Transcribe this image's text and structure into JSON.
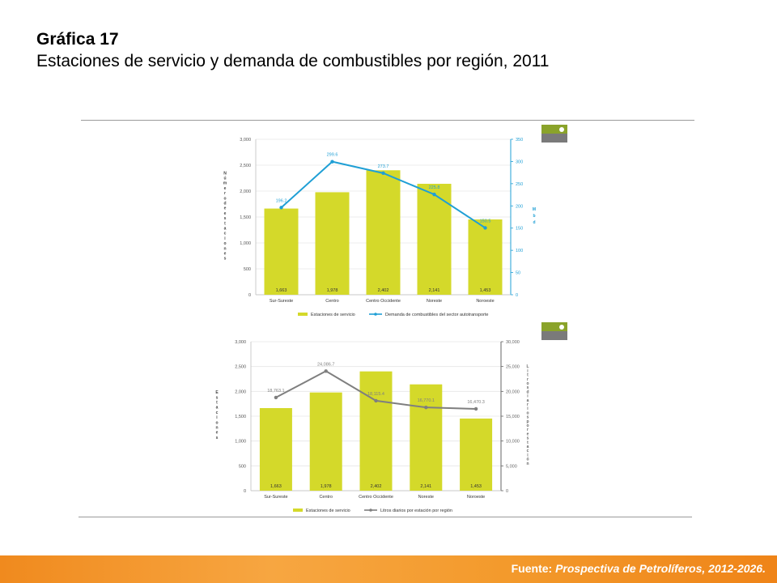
{
  "header": {
    "title": "Gráfica 17",
    "subtitle": "Estaciones de servicio y demanda de combustibles por región, 2011"
  },
  "footer": {
    "source_label": "Fuente:",
    "source_text": "Prospectiva de Petrolíferos, 2012-2026."
  },
  "colors": {
    "bar": "#d4d92a",
    "line_top": "#1f9fd5",
    "line_bottom": "#7f7f7f",
    "footer": "#f39a2c"
  },
  "chart_data": [
    {
      "type": "bar+line",
      "categories": [
        "Sur-Sureste",
        "Centro",
        "Centro Occidente",
        "Noreste",
        "Noroeste"
      ],
      "series": [
        {
          "name": "Estaciones de servicio",
          "type": "bar",
          "axis": "left",
          "values": [
            1663,
            1978,
            2402,
            2141,
            1453
          ],
          "labels": [
            "1,663",
            "1,978",
            "2,402",
            "2,141",
            "1,453"
          ]
        },
        {
          "name": "Demanda de combustibles del sector autotransporte",
          "type": "line",
          "axis": "right",
          "values": [
            196.2,
            299.6,
            273.7,
            225.8,
            150.5
          ],
          "labels": [
            "196.2",
            "299.6",
            "273.7",
            "225.8",
            "150.5"
          ]
        }
      ],
      "ylabel": "Número de estaciones",
      "y2label": "Mbd",
      "ylim": [
        0,
        3000
      ],
      "y2lim": [
        0,
        350
      ],
      "yticks": [
        "0",
        "500",
        "1,000",
        "1,500",
        "2,000",
        "2,500",
        "3,000"
      ],
      "y2ticks": [
        "0",
        "50",
        "100",
        "150",
        "200",
        "250",
        "300",
        "350"
      ],
      "legend_position": "bottom"
    },
    {
      "type": "bar+line",
      "categories": [
        "Sur-Sureste",
        "Centro",
        "Centro Occidente",
        "Noreste",
        "Noroeste"
      ],
      "series": [
        {
          "name": "Estaciones de servicio",
          "type": "bar",
          "axis": "left",
          "values": [
            1663,
            1978,
            2402,
            2141,
            1453
          ],
          "labels": [
            "1,663",
            "1,978",
            "2,402",
            "2,141",
            "1,453"
          ]
        },
        {
          "name": "Litros diarios por estación por región",
          "type": "line",
          "axis": "right",
          "values": [
            18763.1,
            24086.7,
            18115.4,
            16770.1,
            16470.3
          ],
          "labels": [
            "18,763.1",
            "24,086.7",
            "18,115.4",
            "16,770.1",
            "16,470.3"
          ]
        }
      ],
      "ylabel": "Estaciones",
      "y2label": "Litros diarios por estación",
      "ylim": [
        0,
        3000
      ],
      "y2lim": [
        0,
        30000
      ],
      "yticks": [
        "0",
        "500",
        "1,000",
        "1,500",
        "2,000",
        "2,500",
        "3,000"
      ],
      "y2ticks": [
        "0",
        "5,000",
        "10,000",
        "15,000",
        "20,000",
        "25,000",
        "30,000"
      ],
      "legend_position": "bottom"
    }
  ]
}
